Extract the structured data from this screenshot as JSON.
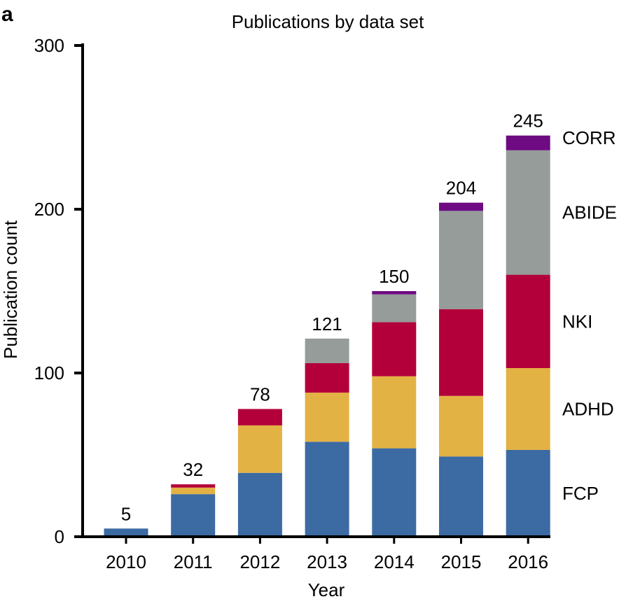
{
  "panel_label": "a",
  "chart_data": {
    "type": "bar",
    "stacked": true,
    "title": "Publications by data set",
    "xlabel": "Year",
    "ylabel": "Publication count",
    "ylim": [
      0,
      300
    ],
    "yticks": [
      0,
      100,
      200,
      300
    ],
    "categories": [
      "2010",
      "2011",
      "2012",
      "2013",
      "2014",
      "2015",
      "2016"
    ],
    "series": [
      {
        "name": "FCP",
        "color": "#3c6aa3",
        "values": [
          5,
          26,
          39,
          58,
          54,
          49,
          53
        ]
      },
      {
        "name": "ADHD",
        "color": "#e3b244",
        "values": [
          0,
          4,
          29,
          30,
          44,
          37,
          50
        ]
      },
      {
        "name": "NKI",
        "color": "#b3003a",
        "values": [
          0,
          2,
          10,
          18,
          33,
          53,
          57
        ]
      },
      {
        "name": "ABIDE",
        "color": "#959c9a",
        "values": [
          0,
          0,
          0,
          15,
          17,
          60,
          76
        ]
      },
      {
        "name": "CORR",
        "color": "#6e0a82",
        "values": [
          0,
          0,
          0,
          0,
          2,
          5,
          9
        ]
      }
    ],
    "totals": [
      5,
      32,
      78,
      121,
      150,
      204,
      245
    ],
    "legend": {
      "placement": "right, aligned with last bar segments"
    },
    "grid": false
  }
}
